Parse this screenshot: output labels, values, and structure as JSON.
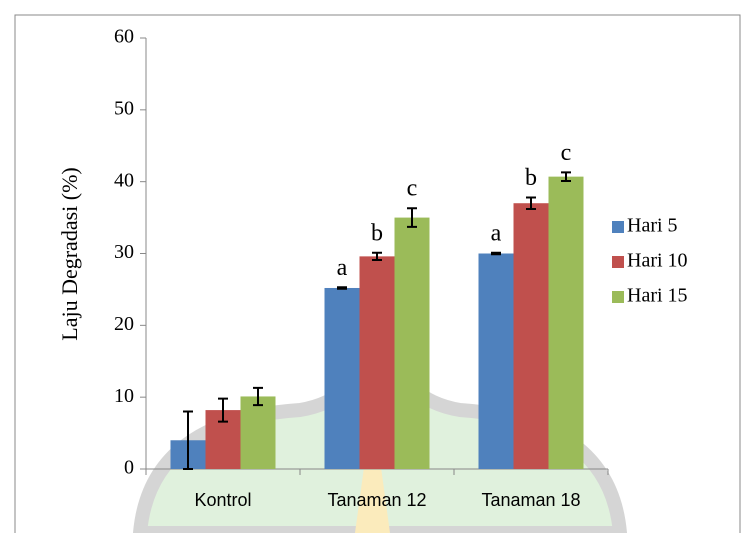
{
  "chart_data": {
    "type": "bar",
    "ylabel": "Laju Degradasi (%)",
    "categories": [
      "Kontrol",
      "Tanaman 12",
      "Tanaman 18"
    ],
    "series": [
      {
        "name": "Hari 5",
        "color": "#4f81bd",
        "values": [
          4,
          25.2,
          30
        ],
        "errors": [
          4,
          0.1,
          0.1
        ],
        "annotations": [
          null,
          "a",
          "a"
        ]
      },
      {
        "name": "Hari 10",
        "color": "#c0504d",
        "values": [
          8.2,
          29.6,
          37
        ],
        "errors": [
          1.6,
          0.5,
          0.8
        ],
        "annotations": [
          null,
          "b",
          "b"
        ]
      },
      {
        "name": "Hari 15",
        "color": "#9bbb59",
        "values": [
          10.1,
          35,
          40.7
        ],
        "errors": [
          1.2,
          1.3,
          0.6
        ],
        "annotations": [
          null,
          "c",
          "c"
        ]
      }
    ],
    "ylim": [
      0,
      60
    ],
    "yticks": [
      0,
      10,
      20,
      30,
      40,
      50,
      60
    ],
    "legend": "right"
  }
}
